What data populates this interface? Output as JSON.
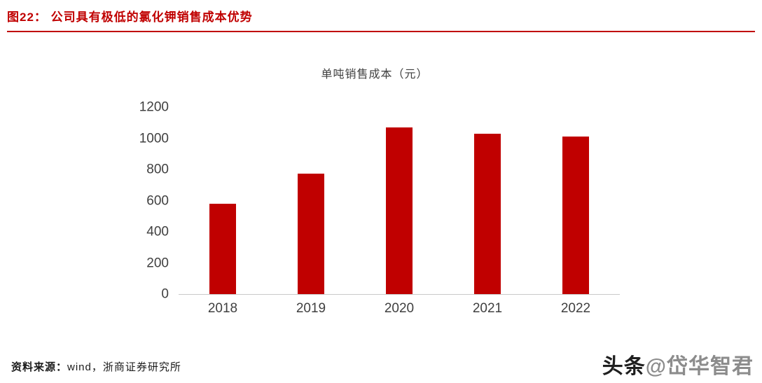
{
  "header": {
    "title": "图22：  公司具有极低的氯化钾销售成本优势",
    "accent_color": "#c00000"
  },
  "chart_data": {
    "type": "bar",
    "title": "单吨销售成本（元）",
    "categories": [
      "2018",
      "2019",
      "2020",
      "2021",
      "2022"
    ],
    "values": [
      580,
      775,
      1070,
      1030,
      1010
    ],
    "xlabel": "",
    "ylabel": "",
    "ylim": [
      0,
      1200
    ],
    "yticks": [
      0,
      200,
      400,
      600,
      800,
      1000,
      1200
    ],
    "bar_color": "#c00000",
    "grid": false,
    "legend": "none"
  },
  "footer": {
    "source_label": "资料来源：",
    "source_value": "wind，浙商证券研究所"
  },
  "watermark": {
    "prefix": "头条",
    "handle": "@岱华智君"
  }
}
